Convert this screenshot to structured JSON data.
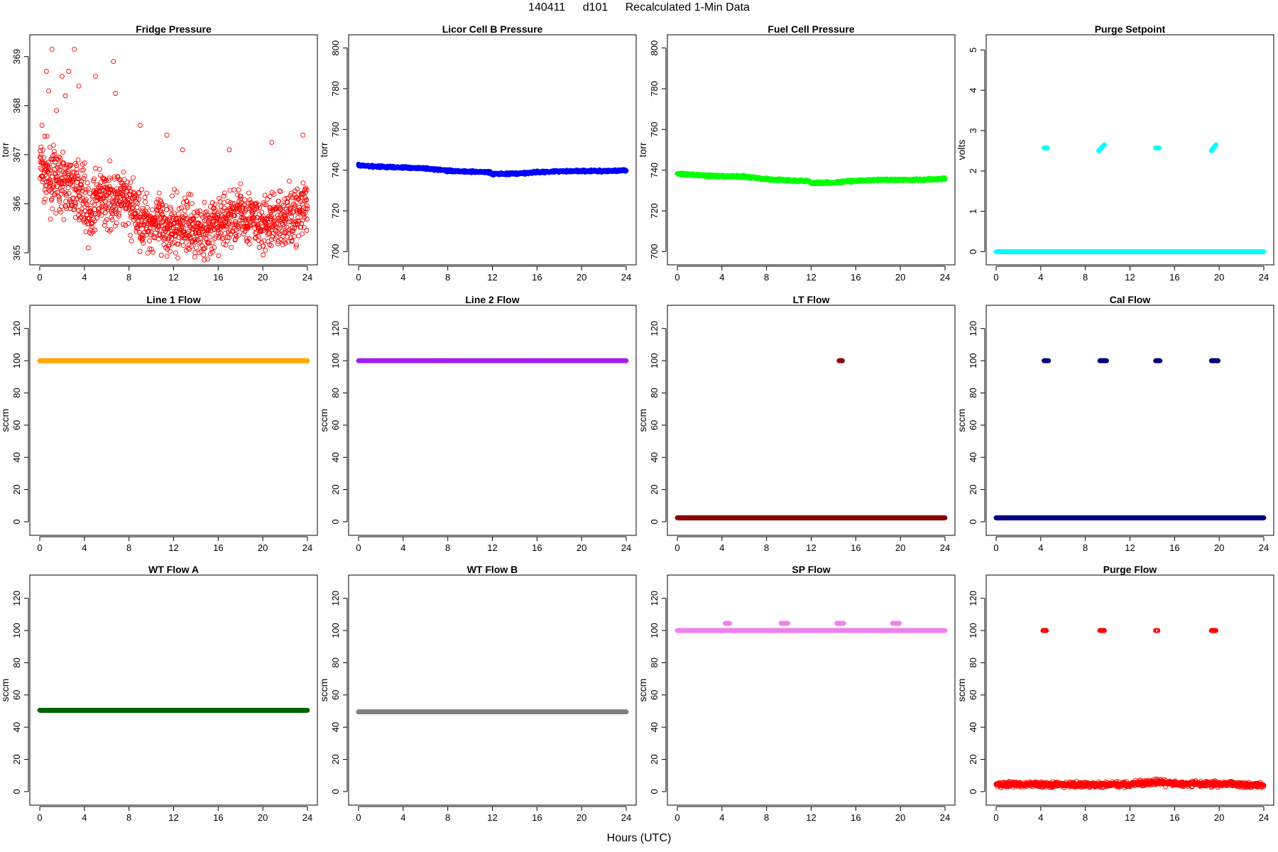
{
  "page": {
    "title_parts": [
      "140411",
      "d101",
      "Recalculated 1-Min Data"
    ],
    "xlabel": "Hours (UTC)"
  },
  "chart_data": [
    {
      "type": "scatter",
      "title": "Fridge Pressure",
      "ylabel": "torr",
      "xlim": [
        0,
        24
      ],
      "ylim": [
        364.9,
        369.3
      ],
      "xticks": [
        0,
        4,
        8,
        12,
        16,
        20,
        24
      ],
      "yticks": [
        365,
        366,
        367,
        368,
        369
      ],
      "color": "#ff0000",
      "marker": "hollow-circle",
      "grid": false,
      "series": [
        {
          "x": [
            0,
            0.5,
            1,
            1.5,
            2,
            2.5,
            3,
            3.5,
            4,
            4.5,
            5,
            6,
            7,
            8,
            9,
            10,
            11,
            12,
            13,
            14,
            15,
            16,
            17,
            18,
            19,
            20,
            21,
            22,
            23,
            24
          ],
          "y": [
            366.8,
            366.6,
            366.5,
            366.5,
            366.4,
            366.4,
            366.3,
            366.3,
            366.2,
            365.6,
            366.1,
            366.1,
            366.1,
            366.0,
            365.7,
            365.6,
            365.6,
            365.5,
            365.6,
            365.5,
            365.4,
            365.6,
            365.7,
            365.8,
            365.7,
            365.5,
            365.7,
            365.7,
            365.8,
            365.9
          ],
          "spread": 0.55,
          "density": 55
        }
      ],
      "outliers": [
        [
          0.8,
          368.3
        ],
        [
          1.1,
          369.15
        ],
        [
          3.1,
          369.15
        ],
        [
          2.0,
          368.6
        ],
        [
          2.6,
          368.7
        ],
        [
          6.6,
          368.9
        ],
        [
          6.8,
          368.25
        ],
        [
          5.0,
          368.6
        ],
        [
          3.5,
          368.4
        ],
        [
          0.6,
          368.7
        ],
        [
          1.5,
          367.9
        ],
        [
          2.3,
          368.2
        ],
        [
          9.0,
          367.6
        ],
        [
          11.4,
          367.4
        ],
        [
          12.8,
          367.1
        ],
        [
          17.0,
          367.1
        ],
        [
          20.8,
          367.25
        ],
        [
          23.6,
          367.4
        ],
        [
          10.9,
          364.95
        ],
        [
          0.2,
          367.6
        ]
      ]
    },
    {
      "type": "scatter",
      "title": "Licor Cell B Pressure",
      "ylabel": "torr",
      "xlim": [
        0,
        24
      ],
      "ylim": [
        697,
        803
      ],
      "xticks": [
        0,
        4,
        8,
        12,
        16,
        20,
        24
      ],
      "yticks": [
        700,
        720,
        740,
        760,
        780,
        800
      ],
      "color": "#0000ff",
      "marker": "filled-circle",
      "grid": false,
      "series": [
        {
          "x": [
            0,
            2,
            4,
            6,
            8,
            10,
            11.8,
            12.0,
            12.3,
            14,
            16,
            18,
            20,
            22,
            24
          ],
          "y": [
            742.3,
            741.7,
            741.3,
            740.9,
            739.8,
            739.3,
            739.0,
            737.9,
            738.2,
            738.2,
            739.0,
            739.5,
            739.6,
            739.5,
            739.9
          ],
          "spread": 0.5,
          "density": 40
        }
      ]
    },
    {
      "type": "scatter",
      "title": "Fuel Cell Pressure",
      "ylabel": "torr",
      "xlim": [
        0,
        24
      ],
      "ylim": [
        697,
        803
      ],
      "xticks": [
        0,
        4,
        8,
        12,
        16,
        20,
        24
      ],
      "yticks": [
        700,
        720,
        740,
        760,
        780,
        800
      ],
      "color": "#00ff00",
      "marker": "filled-circle",
      "grid": false,
      "series": [
        {
          "x": [
            0,
            2,
            4,
            6,
            8,
            10,
            11.8,
            12.0,
            12.3,
            14,
            16,
            18,
            20,
            22,
            24
          ],
          "y": [
            738.3,
            737.5,
            737.0,
            736.9,
            735.6,
            735.0,
            734.8,
            733.4,
            733.8,
            733.9,
            734.8,
            735.2,
            735.3,
            735.3,
            735.7
          ],
          "spread": 0.5,
          "density": 40
        }
      ]
    },
    {
      "type": "scatter",
      "title": "Purge Setpoint",
      "ylabel": "volts",
      "xlim": [
        0,
        24
      ],
      "ylim": [
        -0.15,
        5.2
      ],
      "xticks": [
        0,
        4,
        8,
        12,
        16,
        20,
        24
      ],
      "yticks": [
        0,
        1,
        2,
        3,
        4,
        5
      ],
      "color": "#00ffff",
      "marker": "filled-circle",
      "grid": false,
      "series": [
        {
          "x": [
            0,
            24
          ],
          "y": [
            0,
            0
          ],
          "spread": 0.0,
          "density": 40
        }
      ],
      "clusters": [
        [
          4.3,
          4.6,
          2.57,
          2.57
        ],
        [
          9.2,
          9.7,
          2.5,
          2.65
        ],
        [
          14.3,
          14.6,
          2.57,
          2.57
        ],
        [
          19.3,
          19.7,
          2.5,
          2.65
        ]
      ]
    },
    {
      "type": "scatter",
      "title": "Line 1 Flow",
      "ylabel": "sccm",
      "xlim": [
        0,
        24
      ],
      "ylim": [
        -4,
        130
      ],
      "xticks": [
        0,
        4,
        8,
        12,
        16,
        20,
        24
      ],
      "yticks": [
        0,
        20,
        40,
        60,
        80,
        100,
        120
      ],
      "color": "#ffa500",
      "marker": "filled-circle",
      "grid": false,
      "series": [
        {
          "x": [
            0,
            24
          ],
          "y": [
            100,
            100
          ],
          "spread": 0.0,
          "density": 40
        }
      ]
    },
    {
      "type": "scatter",
      "title": "Line 2 Flow",
      "ylabel": "sccm",
      "xlim": [
        0,
        24
      ],
      "ylim": [
        -4,
        130
      ],
      "xticks": [
        0,
        4,
        8,
        12,
        16,
        20,
        24
      ],
      "yticks": [
        0,
        20,
        40,
        60,
        80,
        100,
        120
      ],
      "color": "#a020f0",
      "marker": "filled-circle",
      "grid": false,
      "series": [
        {
          "x": [
            0,
            24
          ],
          "y": [
            100,
            100
          ],
          "spread": 0.0,
          "density": 40
        }
      ]
    },
    {
      "type": "scatter",
      "title": "LT Flow",
      "ylabel": "sccm",
      "xlim": [
        0,
        24
      ],
      "ylim": [
        -4,
        130
      ],
      "xticks": [
        0,
        4,
        8,
        12,
        16,
        20,
        24
      ],
      "yticks": [
        0,
        20,
        40,
        60,
        80,
        100,
        120
      ],
      "color": "#8b0000",
      "marker": "filled-circle",
      "grid": false,
      "series": [
        {
          "x": [
            0,
            24
          ],
          "y": [
            2.5,
            2.5
          ],
          "spread": 0.0,
          "density": 40
        }
      ],
      "clusters": [
        [
          14.5,
          14.8,
          100,
          100
        ]
      ]
    },
    {
      "type": "scatter",
      "title": "Cal Flow",
      "ylabel": "sccm",
      "xlim": [
        0,
        24
      ],
      "ylim": [
        -4,
        130
      ],
      "xticks": [
        0,
        4,
        8,
        12,
        16,
        20,
        24
      ],
      "yticks": [
        0,
        20,
        40,
        60,
        80,
        100,
        120
      ],
      "color": "#000080",
      "marker": "filled-circle",
      "grid": false,
      "series": [
        {
          "x": [
            0,
            24
          ],
          "y": [
            2.5,
            2.5
          ],
          "spread": 0.0,
          "density": 40
        }
      ],
      "clusters": [
        [
          4.3,
          4.7,
          100,
          100
        ],
        [
          9.3,
          9.9,
          100,
          100
        ],
        [
          14.3,
          14.7,
          100,
          100
        ],
        [
          19.3,
          19.9,
          100,
          100
        ]
      ]
    },
    {
      "type": "scatter",
      "title": "WT Flow A",
      "ylabel": "sccm",
      "xlim": [
        0,
        24
      ],
      "ylim": [
        -4,
        130
      ],
      "xticks": [
        0,
        4,
        8,
        12,
        16,
        20,
        24
      ],
      "yticks": [
        0,
        20,
        40,
        60,
        80,
        100,
        120
      ],
      "color": "#006400",
      "marker": "filled-circle",
      "grid": false,
      "series": [
        {
          "x": [
            0,
            24
          ],
          "y": [
            50.5,
            50.5
          ],
          "spread": 0.0,
          "density": 40
        }
      ]
    },
    {
      "type": "scatter",
      "title": "WT Flow B",
      "ylabel": "sccm",
      "xlim": [
        0,
        24
      ],
      "ylim": [
        -4,
        130
      ],
      "xticks": [
        0,
        4,
        8,
        12,
        16,
        20,
        24
      ],
      "yticks": [
        0,
        20,
        40,
        60,
        80,
        100,
        120
      ],
      "color": "#808080",
      "marker": "filled-circle",
      "grid": false,
      "series": [
        {
          "x": [
            0,
            24
          ],
          "y": [
            49.5,
            49.5
          ],
          "spread": 0.0,
          "density": 40
        }
      ]
    },
    {
      "type": "scatter",
      "title": "SP Flow",
      "ylabel": "sccm",
      "xlim": [
        0,
        24
      ],
      "ylim": [
        -4,
        130
      ],
      "xticks": [
        0,
        4,
        8,
        12,
        16,
        20,
        24
      ],
      "yticks": [
        0,
        20,
        40,
        60,
        80,
        100,
        120
      ],
      "color": "#ee82ee",
      "marker": "filled-circle",
      "grid": false,
      "series": [
        {
          "x": [
            0,
            24
          ],
          "y": [
            100,
            100
          ],
          "spread": 0.0,
          "density": 40
        }
      ],
      "clusters": [
        [
          4.3,
          4.7,
          104.5,
          104.5
        ],
        [
          9.3,
          9.9,
          104.5,
          104.5
        ],
        [
          14.3,
          14.9,
          104.5,
          104.5
        ],
        [
          19.3,
          19.9,
          104.5,
          104.5
        ]
      ]
    },
    {
      "type": "scatter",
      "title": "Purge Flow",
      "ylabel": "sccm",
      "xlim": [
        0,
        24
      ],
      "ylim": [
        -4,
        130
      ],
      "xticks": [
        0,
        4,
        8,
        12,
        16,
        20,
        24
      ],
      "yticks": [
        0,
        20,
        40,
        60,
        80,
        100,
        120
      ],
      "color": "#ff0000",
      "marker": "hollow-circle",
      "grid": false,
      "series": [
        {
          "x": [
            0,
            4,
            8,
            12,
            14.5,
            16,
            20,
            24
          ],
          "y": [
            4.5,
            4.5,
            4.2,
            4.5,
            6.0,
            4.8,
            4.8,
            4.2
          ],
          "spread": 1.6,
          "density": 40
        }
      ],
      "clusters": [
        [
          4.2,
          4.5,
          100,
          100
        ],
        [
          9.3,
          9.7,
          100,
          100
        ],
        [
          14.3,
          14.5,
          100,
          100
        ],
        [
          19.3,
          19.7,
          100,
          100
        ]
      ]
    }
  ]
}
